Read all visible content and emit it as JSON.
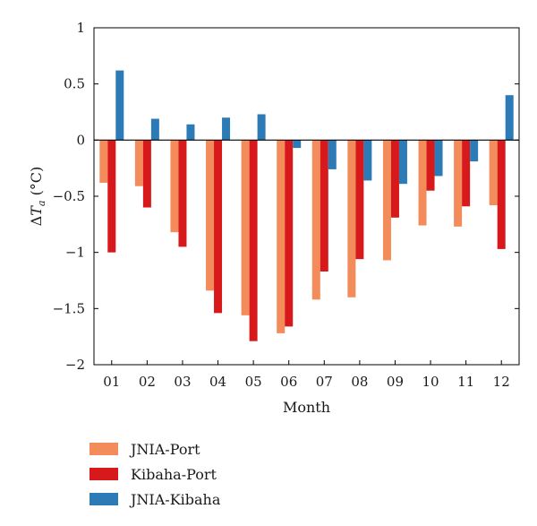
{
  "chart_data": {
    "type": "bar",
    "title": "",
    "xlabel": "Month",
    "ylabel": "ΔTa (°C)",
    "ylabel_parts": {
      "delta": "Δ",
      "symbol": "T",
      "subscript": "a",
      "unit": " (°C)"
    },
    "categories": [
      "01",
      "02",
      "03",
      "04",
      "05",
      "06",
      "07",
      "08",
      "09",
      "10",
      "11",
      "12"
    ],
    "ylim": [
      -2,
      1
    ],
    "yticks": [
      1,
      0.5,
      0,
      -0.5,
      -1,
      -1.5,
      -2
    ],
    "ytick_labels": [
      "1",
      "0.5",
      "0",
      "−0.5",
      "−1",
      "−1.5",
      "−2"
    ],
    "grid": false,
    "legend_position": "below",
    "series": [
      {
        "name": "JNIA-Port",
        "color": "#f48b5a",
        "values": [
          -0.38,
          -0.41,
          -0.82,
          -1.34,
          -1.56,
          -1.72,
          -1.42,
          -1.4,
          -1.07,
          -0.76,
          -0.77,
          -0.58
        ]
      },
      {
        "name": "Kibaha-Port",
        "color": "#d7191c",
        "values": [
          -1.0,
          -0.6,
          -0.95,
          -1.54,
          -1.79,
          -1.66,
          -1.17,
          -1.06,
          -0.69,
          -0.45,
          -0.59,
          -0.97
        ]
      },
      {
        "name": "JNIA-Kibaha",
        "color": "#2c7bb6",
        "values": [
          0.62,
          0.19,
          0.14,
          0.2,
          0.23,
          -0.07,
          -0.26,
          -0.36,
          -0.39,
          -0.32,
          -0.19,
          0.4
        ]
      }
    ]
  }
}
